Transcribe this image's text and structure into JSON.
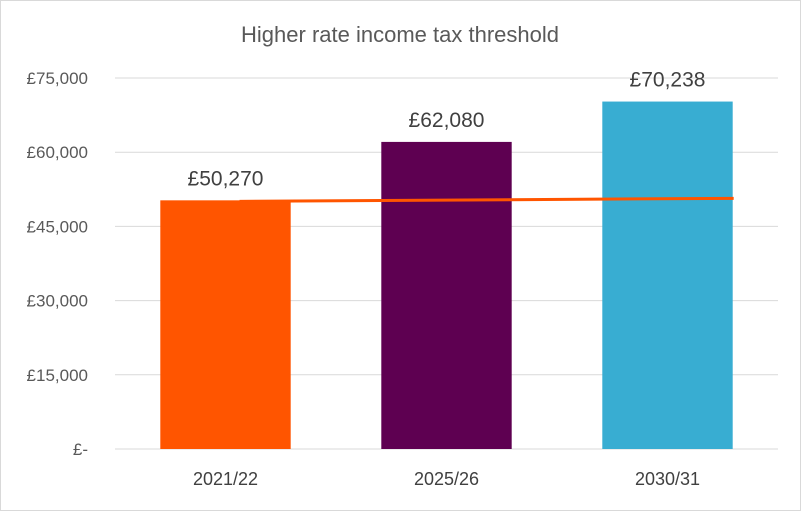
{
  "chart_data": {
    "type": "bar",
    "title": "Higher rate income tax threshold",
    "categories": [
      "2021/22",
      "2025/26",
      "2030/31"
    ],
    "values": [
      50270,
      62080,
      70238
    ],
    "data_labels": [
      "£50,270",
      "£62,080",
      "£70,238"
    ],
    "bar_colors": [
      "#FF5500",
      "#5E0051",
      "#38ADD2"
    ],
    "ylim": [
      0,
      75000
    ],
    "yticks": [
      0,
      15000,
      30000,
      45000,
      60000,
      75000
    ],
    "ytick_labels": [
      "£-",
      "£15,000",
      "£30,000",
      "£45,000",
      "£60,000",
      "£75,000"
    ],
    "grid": true,
    "reference_line": {
      "value": 50270,
      "color": "#FF5500"
    },
    "xlabel": "",
    "ylabel": ""
  }
}
